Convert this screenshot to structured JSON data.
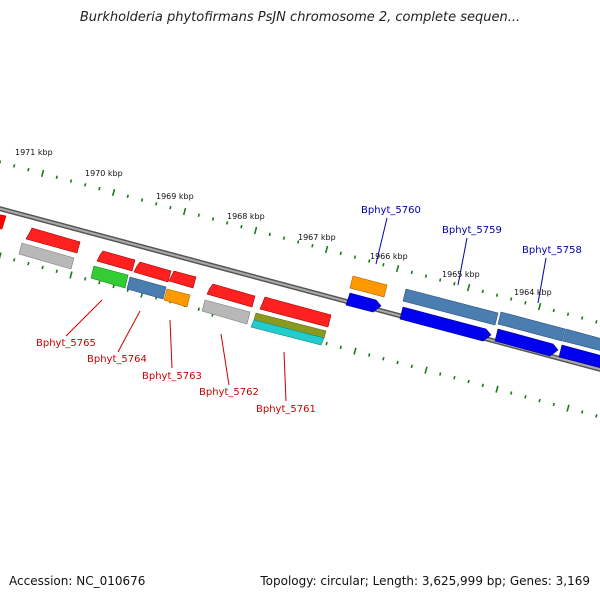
{
  "title": "Burkholderia phytofirmans PsJN chromosome 2, complete sequen...",
  "footer": {
    "accession": "Accession: NC_010676",
    "summary": "Topology: circular; Length: 3,625,999 bp; Genes: 3,169"
  },
  "colors": {
    "minus_label": "#cc0000",
    "plus_label": "#0000aa",
    "tick": "#1a7a1a",
    "backbone": "#777777"
  },
  "ruler": {
    "labels": [
      "1971 kbp",
      "1970 kbp",
      "1969 kbp",
      "1968 kbp",
      "1967 kbp",
      "1966 kbp",
      "1965 kbp",
      "1964 kbp"
    ]
  },
  "genes": {
    "minus_labels": [
      "Bphyt_5765",
      "Bphyt_5764",
      "Bphyt_5763",
      "Bphyt_5762",
      "Bphyt_5761"
    ],
    "plus_labels": [
      "Bphyt_5760",
      "Bphyt_5759",
      "Bphyt_5758"
    ]
  }
}
